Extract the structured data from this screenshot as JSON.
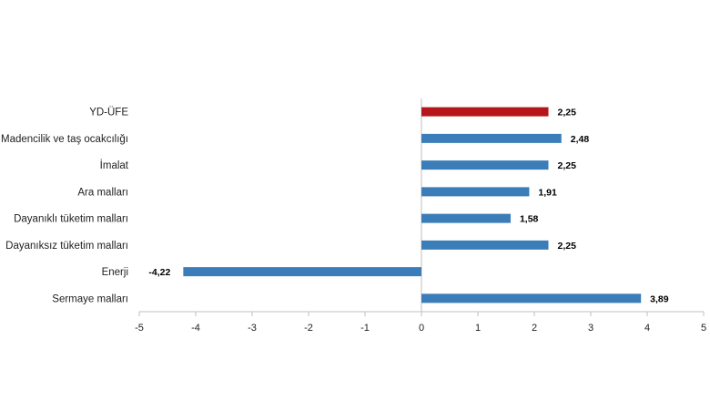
{
  "chart_data": {
    "type": "bar",
    "orientation": "horizontal",
    "categories": [
      "YD-ÜFE",
      "Madencilik ve taş ocakcılığı",
      "İmalat",
      "Ara malları",
      "Dayanıklı tüketim malları",
      "Dayanıksız tüketim malları",
      "Enerji",
      "Sermaye malları"
    ],
    "values": [
      2.25,
      2.48,
      2.25,
      1.91,
      1.58,
      2.25,
      -4.22,
      3.89
    ],
    "value_labels": [
      "2,25",
      "2,48",
      "2,25",
      "1,91",
      "1,58",
      "2,25",
      "-4,22",
      "3,89"
    ],
    "xlim": [
      -5,
      5
    ],
    "x_ticks": [
      -5,
      -4,
      -3,
      -2,
      -1,
      0,
      1,
      2,
      3,
      4,
      5
    ],
    "x_tick_labels": [
      "-5",
      "-4",
      "-3",
      "-2",
      "-1",
      "0",
      "1",
      "2",
      "3",
      "4",
      "5"
    ],
    "grid": false,
    "colors": {
      "highlight": "#b5161c",
      "default": "#3a7db8",
      "axis": "#bfbfbf"
    },
    "highlight_index": 0
  }
}
